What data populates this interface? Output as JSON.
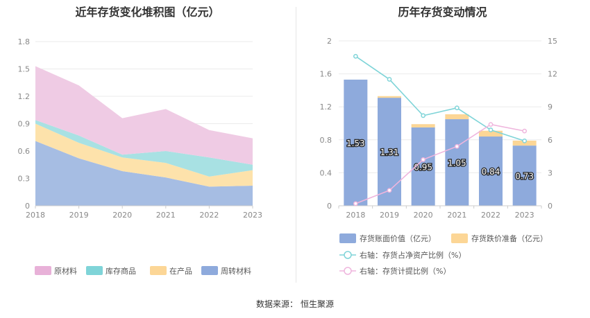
{
  "left_title": "近年存货变化堆积图（亿元）",
  "right_title": "历年存货变动情况",
  "source": {
    "label": "数据来源：",
    "value": "恒生聚源"
  },
  "chart_data": [
    {
      "type": "area",
      "stacked": true,
      "title": "近年存货变化堆积图（亿元）",
      "x": [
        "2018",
        "2019",
        "2020",
        "2021",
        "2022",
        "2023"
      ],
      "ylim": [
        0,
        1.8
      ],
      "yticks": [
        "0",
        "0.3",
        "0.6",
        "0.9",
        "1.2",
        "1.5",
        "1.8"
      ],
      "series": [
        {
          "name": "周转材料",
          "color": "#a6bde3",
          "values": [
            0.71,
            0.52,
            0.38,
            0.31,
            0.21,
            0.22
          ]
        },
        {
          "name": "在产品",
          "color": "#fde2ab",
          "values": [
            0.19,
            0.17,
            0.15,
            0.16,
            0.11,
            0.17
          ]
        },
        {
          "name": "库存商品",
          "color": "#a8e1e3",
          "values": [
            0.04,
            0.08,
            0.03,
            0.13,
            0.21,
            0.06
          ]
        },
        {
          "name": "原材料",
          "color": "#efcbe4",
          "values": [
            0.59,
            0.55,
            0.4,
            0.46,
            0.3,
            0.29
          ]
        }
      ],
      "legend": [
        "原材料",
        "库存商品",
        "在产品",
        "周转材料"
      ],
      "legend_colors": [
        "#e8b1d8",
        "#7fd4d8",
        "#fcd696",
        "#8eaadc"
      ],
      "legend_position": "bottom"
    },
    {
      "type": "bar",
      "title": "历年存货变动情况",
      "categories": [
        "2018",
        "2019",
        "2020",
        "2021",
        "2022",
        "2023"
      ],
      "ylim": [
        0,
        2
      ],
      "yticks": [
        "0",
        "0.4",
        "0.8",
        "1.2",
        "1.6",
        "2"
      ],
      "y2lim": [
        0,
        15
      ],
      "y2ticks": [
        "0",
        "3",
        "6",
        "9",
        "12",
        "15"
      ],
      "series": [
        {
          "name": "存货账面价值（亿元）",
          "color": "#8eaadc",
          "values": [
            1.53,
            1.31,
            0.95,
            1.05,
            0.84,
            0.73
          ],
          "labels": [
            "1.53",
            "1.31",
            "0.95",
            "1.05",
            "0.84",
            "0.73"
          ]
        },
        {
          "name": "存货跌价准备（亿元）",
          "color": "#fcd696",
          "values": [
            0.0,
            0.02,
            0.04,
            0.06,
            0.07,
            0.06
          ]
        },
        {
          "name": "右轴：存货占净资产比例（%）",
          "color": "#7fd4d8",
          "axis": "right",
          "values": [
            13.6,
            11.5,
            8.2,
            8.9,
            6.9,
            5.9
          ]
        },
        {
          "name": "右轴：存货计提比例（%）",
          "color": "#efb5dd",
          "axis": "right",
          "values": [
            0.2,
            1.4,
            4.2,
            5.4,
            7.4,
            6.8
          ]
        }
      ],
      "legend_position": "bottom"
    }
  ]
}
